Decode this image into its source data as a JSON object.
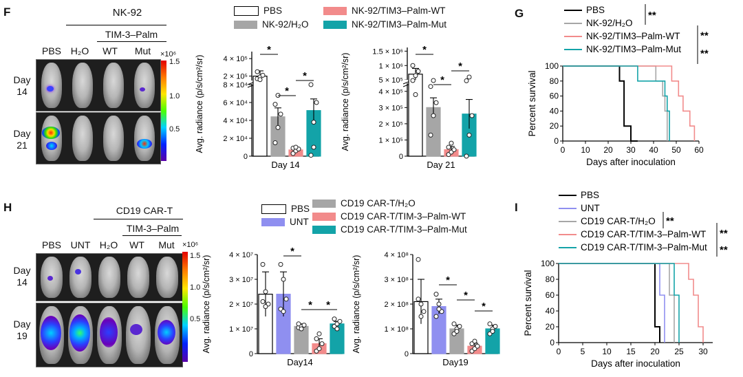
{
  "panels": {
    "F": "F",
    "G": "G",
    "H": "H",
    "I": "I"
  },
  "F_imaging": {
    "group_header": "NK-92",
    "sub_header": "TIM-3–Palm",
    "columns": [
      "PBS",
      "H₂O",
      "WT",
      "Mut"
    ],
    "rows": [
      {
        "day": "Day",
        "num": "14"
      },
      {
        "day": "Day",
        "num": "21"
      }
    ],
    "scale_exp": "×10⁶",
    "scale_ticks": [
      "1.5",
      "1.0",
      "0.5"
    ]
  },
  "H_imaging": {
    "group_header": "CD19 CAR-T",
    "sub_header": "TIM-3–Palm",
    "columns": [
      "PBS",
      "UNT",
      "H₂O",
      "WT",
      "Mut"
    ],
    "rows": [
      {
        "day": "Day",
        "num": "14"
      },
      {
        "day": "Day",
        "num": "19"
      }
    ],
    "scale_exp": "×10⁶",
    "scale_ticks": [
      "1.5",
      "1.0",
      "0.5"
    ]
  },
  "F_legend": [
    "PBS",
    "NK-92/H₂O",
    "NK-92/TIM3–Palm-WT",
    "NK-92/TIM3–Palm-Mut"
  ],
  "H_legend": [
    "PBS",
    "UNT",
    "CD19 CAR-T/H₂O",
    "CD19 CAR-T/TIM-3–Palm-WT",
    "CD19 CAR-T/TIM-3–Palm-Mut"
  ],
  "colors": {
    "pbs": "#ffffff",
    "h2o": "#a6a6a6",
    "wt": "#f28b8b",
    "mut": "#13a3a8",
    "unt": "#8f8ff0"
  },
  "chart_data": [
    {
      "id": "F-day14",
      "type": "bar",
      "broken_axis": true,
      "ylabel": "Avg. radiance (p/s/cm²/sr)",
      "xlabel": "Day 14",
      "categories": [
        "PBS",
        "NK-92/H₂O",
        "NK-92/TIM3–Palm-WT",
        "NK-92/TIM3–Palm-Mut"
      ],
      "values": [
        200000,
        44000,
        7000,
        51000
      ],
      "sem": [
        60000,
        10000,
        2000,
        13000
      ],
      "points": [
        [
          170000,
          190000,
          210000,
          250000,
          160000
        ],
        [
          15000,
          32000,
          47000,
          58000,
          68000
        ],
        [
          3000,
          6000,
          8000,
          9000,
          10000
        ],
        [
          1000,
          38000,
          60000,
          80000,
          10000
        ]
      ],
      "yticks_lower": [
        "0",
        "2 × 10⁴",
        "4 × 10⁴",
        "6 × 10⁴",
        "8 × 10⁴"
      ],
      "yticks_upper": [
        "2 × 10⁵",
        "4 × 10⁵"
      ],
      "significance": [
        "*",
        "*",
        "*"
      ]
    },
    {
      "id": "F-day21",
      "type": "bar",
      "broken_axis": true,
      "ylabel": "Avg. radiance (p/s/cm²/sr)",
      "xlabel": "Day 21",
      "categories": [
        "PBS",
        "NK-92/H₂O",
        "NK-92/TIM3–Palm-WT",
        "NK-92/TIM3–Palm-Mut"
      ],
      "values": [
        700000,
        300000,
        40000,
        260000
      ],
      "sem": [
        200000,
        60000,
        20000,
        90000
      ],
      "points": [
        [
          480000,
          650000,
          800000,
          1000000,
          380000
        ],
        [
          130000,
          250000,
          330000,
          430000,
          480000
        ],
        [
          10000,
          25000,
          40000,
          55000,
          80000
        ],
        [
          0,
          130000,
          250000,
          470000,
          600000
        ]
      ],
      "yticks_lower": [
        "0",
        "1 × 10⁵",
        "2 × 10⁵",
        "3 × 10⁵",
        "4 × 10⁵"
      ],
      "yticks_upper": [
        "5 × 10⁵",
        "1 × 10⁶",
        "1.5 × 10⁶"
      ],
      "significance": [
        "*",
        "*",
        "*"
      ]
    },
    {
      "id": "H-day14",
      "type": "bar",
      "ylabel": "Avg. radiance (p/s/cm²/sr)",
      "xlabel": "Day14",
      "categories": [
        "PBS",
        "UNT",
        "CD19 CAR-T/H₂O",
        "CD19 CAR-T/TIM-3–Palm-WT",
        "CD19 CAR-T/TIM-3–Palm-Mut"
      ],
      "values": [
        24000000,
        24000000,
        11000000,
        4000000,
        12000000
      ],
      "sem": [
        9000000,
        9000000,
        1000000,
        2000000,
        1000000
      ],
      "points": [
        [
          36000000,
          25000000,
          20000000,
          21000000,
          19000000
        ],
        [
          36000000,
          30000000,
          22000000,
          18000000,
          17000000
        ],
        [
          10500000,
          11000000,
          11500000,
          12000000,
          10000000
        ],
        [
          1000000,
          2000000,
          4000000,
          6000000,
          8000000
        ],
        [
          11000000,
          12000000,
          13000000,
          14000000,
          10000000
        ]
      ],
      "yticks": [
        "0",
        "1 × 10⁷",
        "2 × 10⁷",
        "3 × 10⁷",
        "4 × 10⁷"
      ],
      "ylim": [
        0,
        40000000
      ],
      "significance": [
        "*",
        "*",
        "*"
      ]
    },
    {
      "id": "H-day19",
      "type": "bar",
      "ylabel": "Avg. radiance (p/s/cm²/sr)",
      "xlabel": "Day19",
      "categories": [
        "PBS",
        "UNT",
        "CD19 CAR-T/H₂O",
        "CD19 CAR-T/TIM-3–Palm-WT",
        "CD19 CAR-T/TIM-3–Palm-Mut"
      ],
      "values": [
        210000000,
        190000000,
        100000000,
        30000000,
        100000000
      ],
      "sem": [
        90000000,
        30000000,
        15000000,
        12000000,
        15000000
      ],
      "points": [
        [
          380000000,
          200000000,
          170000000,
          220000000,
          150000000
        ],
        [
          240000000,
          200000000,
          170000000,
          150000000,
          180000000
        ],
        [
          80000000,
          100000000,
          110000000,
          120000000,
          90000000
        ],
        [
          10000000,
          20000000,
          30000000,
          40000000,
          50000000
        ],
        [
          80000000,
          100000000,
          110000000,
          120000000,
          90000000
        ]
      ],
      "yticks": [
        "0",
        "1 × 10⁸",
        "2 × 10⁸",
        "3 × 10⁸",
        "4 × 10⁸"
      ],
      "ylim": [
        0,
        400000000
      ],
      "significance": [
        "*",
        "*",
        "*"
      ]
    },
    {
      "id": "G-survival",
      "type": "line",
      "xlabel": "Days after inoculation",
      "ylabel": "Percent survival",
      "xlim": [
        0,
        60
      ],
      "ylim": [
        0,
        100
      ],
      "xticks": [
        "0",
        "10",
        "20",
        "30",
        "40",
        "50",
        "60"
      ],
      "yticks": [
        "0",
        "20",
        "40",
        "60",
        "80",
        "100"
      ],
      "series": [
        {
          "name": "PBS",
          "x": [
            0,
            25,
            25,
            27,
            27,
            30,
            30,
            33,
            33
          ],
          "y": [
            100,
            100,
            80,
            80,
            20,
            20,
            0,
            0,
            0
          ]
        },
        {
          "name": "NK-92/H₂O",
          "x": [
            0,
            41,
            41,
            44,
            44,
            45,
            45,
            46,
            46
          ],
          "y": [
            100,
            100,
            80,
            80,
            60,
            60,
            40,
            40,
            0
          ]
        },
        {
          "name": "NK-92/TIM3–Palm-WT",
          "x": [
            0,
            48,
            48,
            51,
            51,
            53,
            53,
            56,
            56,
            58,
            58
          ],
          "y": [
            100,
            100,
            80,
            80,
            60,
            60,
            40,
            40,
            20,
            20,
            0
          ]
        },
        {
          "name": "NK-92/TIM3–Palm-Mut",
          "x": [
            0,
            33,
            33,
            45,
            45,
            46,
            46,
            47,
            47
          ],
          "y": [
            100,
            100,
            80,
            80,
            60,
            60,
            40,
            40,
            0
          ]
        }
      ],
      "significance": [
        "**",
        "**",
        "**"
      ]
    },
    {
      "id": "I-survival",
      "type": "line",
      "xlabel": "Days after inoculation",
      "ylabel": "Percent survival",
      "xlim": [
        0,
        32
      ],
      "ylim": [
        0,
        100
      ],
      "xticks": [
        "0",
        "5",
        "10",
        "15",
        "20",
        "25",
        "30"
      ],
      "yticks": [
        "0",
        "20",
        "40",
        "60",
        "80",
        "100"
      ],
      "series": [
        {
          "name": "PBS",
          "x": [
            0,
            20,
            20,
            21,
            21
          ],
          "y": [
            100,
            100,
            20,
            20,
            0
          ]
        },
        {
          "name": "UNT",
          "x": [
            0,
            21,
            21,
            22,
            22
          ],
          "y": [
            100,
            100,
            60,
            60,
            0
          ]
        },
        {
          "name": "CD19 CAR-T/H₂O",
          "x": [
            0,
            23,
            23,
            24,
            24
          ],
          "y": [
            100,
            100,
            60,
            60,
            0
          ]
        },
        {
          "name": "CD19 CAR-T/TIM-3–Palm-WT",
          "x": [
            0,
            27,
            27,
            28,
            28,
            29,
            29,
            30,
            30
          ],
          "y": [
            100,
            100,
            80,
            80,
            60,
            60,
            20,
            20,
            0
          ]
        },
        {
          "name": "CD19 CAR-T/TIM-3–Palm-Mut",
          "x": [
            0,
            24,
            24,
            25,
            25
          ],
          "y": [
            100,
            100,
            60,
            60,
            0
          ]
        }
      ],
      "significance": [
        "**",
        "**",
        "**"
      ]
    }
  ]
}
